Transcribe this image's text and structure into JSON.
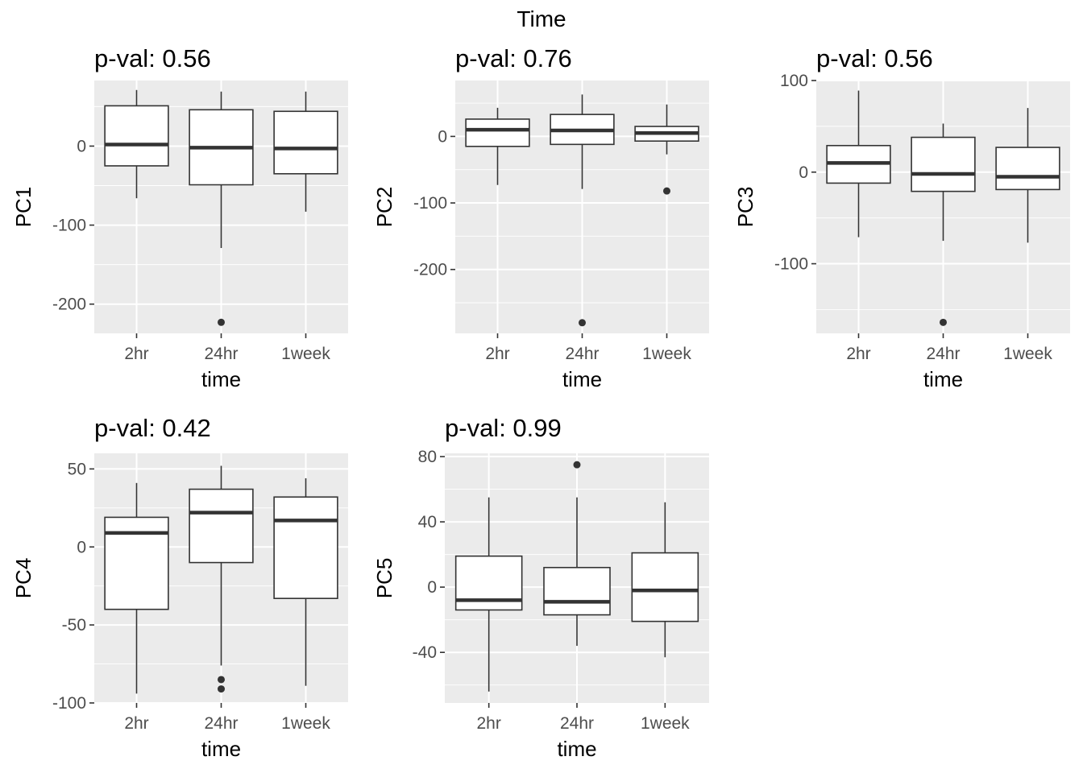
{
  "figure_title": "Time",
  "colors": {
    "panel_background": "#ebebeb",
    "grid_major": "#ffffff",
    "box_fill": "#ffffff",
    "box_line": "#333333",
    "tick_text": "#4d4d4d"
  },
  "chart_data": [
    {
      "type": "box",
      "title": "p-val: 0.56",
      "xlabel": "time",
      "ylabel": "PC1",
      "categories": [
        "2hr",
        "24hr",
        "1week"
      ],
      "ylim": [
        -237,
        83
      ],
      "yticks": [
        -200,
        -100,
        0
      ],
      "yticklabels": [
        "-200",
        "-100",
        "0"
      ],
      "grid": true,
      "boxes": [
        {
          "category": "2hr",
          "min": -66,
          "q1": -25,
          "median": 2,
          "q3": 51,
          "max": 71,
          "outliers": []
        },
        {
          "category": "24hr",
          "min": -129,
          "q1": -49,
          "median": -2,
          "q3": 46,
          "max": 69,
          "outliers": [
            -223
          ]
        },
        {
          "category": "1week",
          "min": -83,
          "q1": -35,
          "median": -3,
          "q3": 44,
          "max": 69,
          "outliers": []
        }
      ]
    },
    {
      "type": "box",
      "title": "p-val: 0.76",
      "xlabel": "time",
      "ylabel": "PC2",
      "categories": [
        "2hr",
        "24hr",
        "1week"
      ],
      "ylim": [
        -296,
        84
      ],
      "yticks": [
        -200,
        -100,
        0
      ],
      "yticklabels": [
        "-200",
        "-100",
        "0"
      ],
      "grid": true,
      "boxes": [
        {
          "category": "2hr",
          "min": -73,
          "q1": -15,
          "median": 10,
          "q3": 26,
          "max": 43,
          "outliers": []
        },
        {
          "category": "24hr",
          "min": -79,
          "q1": -12,
          "median": 9,
          "q3": 33,
          "max": 63,
          "outliers": [
            -280
          ]
        },
        {
          "category": "1week",
          "min": -27,
          "q1": -7,
          "median": 5,
          "q3": 15,
          "max": 48,
          "outliers": [
            -82
          ]
        }
      ]
    },
    {
      "type": "box",
      "title": "p-val: 0.56",
      "xlabel": "time",
      "ylabel": "PC3",
      "categories": [
        "2hr",
        "24hr",
        "1week"
      ],
      "ylim": [
        -176,
        100
      ],
      "yticks": [
        -100,
        0,
        100
      ],
      "yticklabels": [
        "-100",
        "0",
        "100"
      ],
      "grid": true,
      "boxes": [
        {
          "category": "2hr",
          "min": -71,
          "q1": -12,
          "median": 10,
          "q3": 29,
          "max": 89,
          "outliers": []
        },
        {
          "category": "24hr",
          "min": -75,
          "q1": -21,
          "median": -2,
          "q3": 38,
          "max": 53,
          "outliers": [
            -164
          ]
        },
        {
          "category": "1week",
          "min": -77,
          "q1": -19,
          "median": -5,
          "q3": 27,
          "max": 70,
          "outliers": []
        }
      ]
    },
    {
      "type": "box",
      "title": "p-val: 0.42",
      "xlabel": "time",
      "ylabel": "PC4",
      "categories": [
        "2hr",
        "24hr",
        "1week"
      ],
      "ylim": [
        -100,
        60
      ],
      "yticks": [
        -100,
        -50,
        0,
        50
      ],
      "yticklabels": [
        "-100",
        "-50",
        "0",
        "50"
      ],
      "grid": true,
      "boxes": [
        {
          "category": "2hr",
          "min": -94,
          "q1": -40,
          "median": 9,
          "q3": 19,
          "max": 41,
          "outliers": []
        },
        {
          "category": "24hr",
          "min": -76,
          "q1": -10,
          "median": 22,
          "q3": 37,
          "max": 52,
          "outliers": [
            -85,
            -91
          ]
        },
        {
          "category": "1week",
          "min": -89,
          "q1": -33,
          "median": 17,
          "q3": 32,
          "max": 44,
          "outliers": []
        }
      ]
    },
    {
      "type": "box",
      "title": "p-val: 0.99",
      "xlabel": "time",
      "ylabel": "PC5",
      "categories": [
        "2hr",
        "24hr",
        "1week"
      ],
      "ylim": [
        -71,
        82
      ],
      "yticks": [
        -40,
        0,
        40,
        80
      ],
      "yticklabels": [
        "-40",
        "0",
        "40",
        "80"
      ],
      "grid": true,
      "boxes": [
        {
          "category": "2hr",
          "min": -64,
          "q1": -14,
          "median": -8,
          "q3": 19,
          "max": 55,
          "outliers": []
        },
        {
          "category": "24hr",
          "min": -36,
          "q1": -17,
          "median": -9,
          "q3": 12,
          "max": 55,
          "outliers": [
            75
          ]
        },
        {
          "category": "1week",
          "min": -43,
          "q1": -21,
          "median": -2,
          "q3": 21,
          "max": 52,
          "outliers": []
        }
      ]
    }
  ]
}
